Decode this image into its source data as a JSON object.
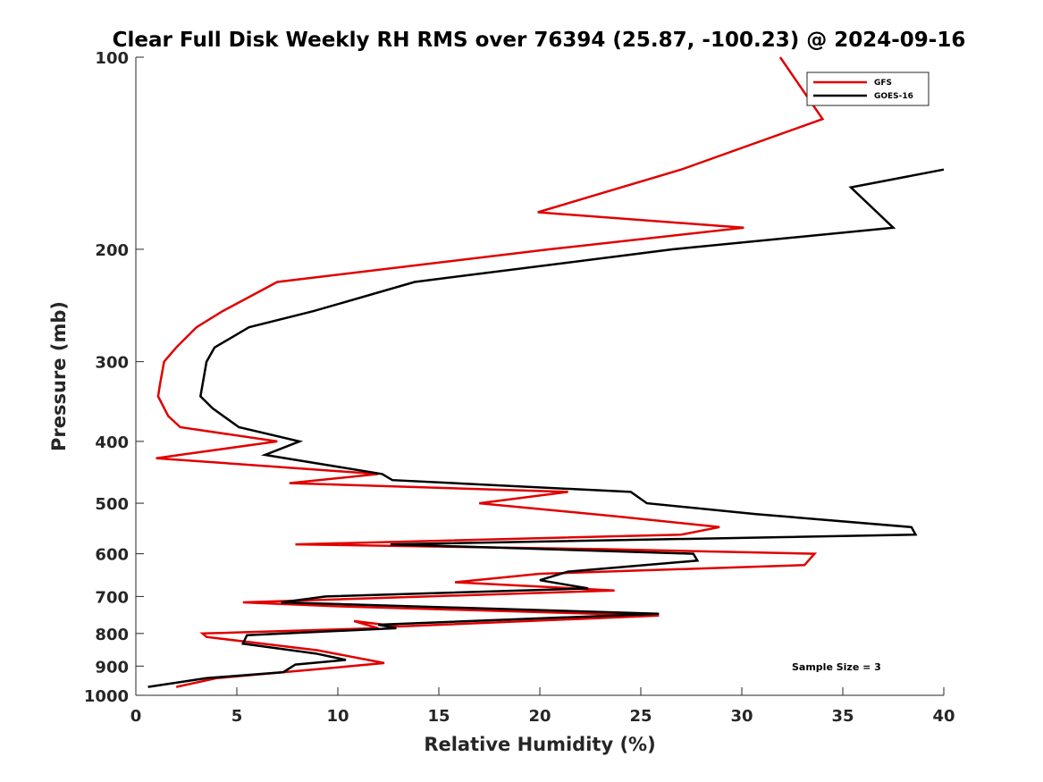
{
  "chart_data": {
    "type": "line",
    "title": "Clear Full Disk Weekly RH RMS over 76394 (25.87, -100.23) @ 2024-09-16",
    "xlabel": "Relative Humidity (%)",
    "ylabel": "Pressure (mb)",
    "xlim": [
      0,
      40
    ],
    "ylim": [
      100,
      1000
    ],
    "y_scale": "log",
    "y_reversed": true,
    "x_ticks": [
      0,
      5,
      10,
      15,
      20,
      25,
      30,
      35,
      40
    ],
    "y_ticks": [
      100,
      200,
      300,
      400,
      500,
      600,
      700,
      800,
      900,
      1000
    ],
    "grid": false,
    "legend_position": "top-right",
    "annotation": "Sample Size = 3",
    "series": [
      {
        "name": "GFS",
        "color": "#e00000",
        "points": [
          [
            31.9,
            100
          ],
          [
            34.0,
            125
          ],
          [
            27.0,
            150
          ],
          [
            19.9,
            175
          ],
          [
            30.1,
            185
          ],
          [
            20.5,
            200
          ],
          [
            7.0,
            225
          ],
          [
            4.3,
            250
          ],
          [
            3.0,
            265
          ],
          [
            2.0,
            285
          ],
          [
            1.4,
            300
          ],
          [
            1.2,
            325
          ],
          [
            1.1,
            340
          ],
          [
            1.6,
            365
          ],
          [
            2.2,
            380
          ],
          [
            7.0,
            400
          ],
          [
            1.0,
            425
          ],
          [
            12.0,
            450
          ],
          [
            7.6,
            465
          ],
          [
            21.4,
            480
          ],
          [
            17.0,
            500
          ],
          [
            24.0,
            525
          ],
          [
            28.9,
            545
          ],
          [
            27.0,
            560
          ],
          [
            7.9,
            580
          ],
          [
            23.0,
            590
          ],
          [
            33.6,
            600
          ],
          [
            33.1,
            625
          ],
          [
            20.0,
            645
          ],
          [
            15.8,
            665
          ],
          [
            23.7,
            685
          ],
          [
            5.3,
            715
          ],
          [
            9.8,
            725
          ],
          [
            25.9,
            750
          ],
          [
            13.0,
            780
          ],
          [
            10.8,
            765
          ],
          [
            12.0,
            785
          ],
          [
            3.3,
            800
          ],
          [
            3.5,
            810
          ],
          [
            9.0,
            850
          ],
          [
            12.3,
            890
          ],
          [
            9.0,
            910
          ],
          [
            4.0,
            940
          ],
          [
            2.0,
            970
          ]
        ]
      },
      {
        "name": "GOES-16",
        "color": "#000000",
        "points": [
          [
            40.0,
            150
          ],
          [
            35.4,
            160
          ],
          [
            37.5,
            185
          ],
          [
            26.6,
            200
          ],
          [
            13.8,
            225
          ],
          [
            8.8,
            250
          ],
          [
            5.6,
            265
          ],
          [
            3.9,
            285
          ],
          [
            3.5,
            300
          ],
          [
            3.2,
            340
          ],
          [
            3.8,
            355
          ],
          [
            5.1,
            380
          ],
          [
            8.1,
            400
          ],
          [
            6.4,
            420
          ],
          [
            12.2,
            450
          ],
          [
            12.7,
            460
          ],
          [
            24.5,
            480
          ],
          [
            25.3,
            500
          ],
          [
            30.7,
            520
          ],
          [
            38.4,
            545
          ],
          [
            38.6,
            560
          ],
          [
            12.6,
            580
          ],
          [
            27.6,
            600
          ],
          [
            27.8,
            615
          ],
          [
            21.4,
            640
          ],
          [
            20.0,
            660
          ],
          [
            22.4,
            680
          ],
          [
            9.4,
            700
          ],
          [
            7.2,
            715
          ],
          [
            25.9,
            745
          ],
          [
            12.0,
            775
          ],
          [
            12.9,
            785
          ],
          [
            5.5,
            805
          ],
          [
            5.3,
            830
          ],
          [
            8.9,
            860
          ],
          [
            10.4,
            880
          ],
          [
            7.9,
            895
          ],
          [
            7.3,
            920
          ],
          [
            3.5,
            940
          ],
          [
            0.6,
            970
          ]
        ]
      }
    ]
  }
}
